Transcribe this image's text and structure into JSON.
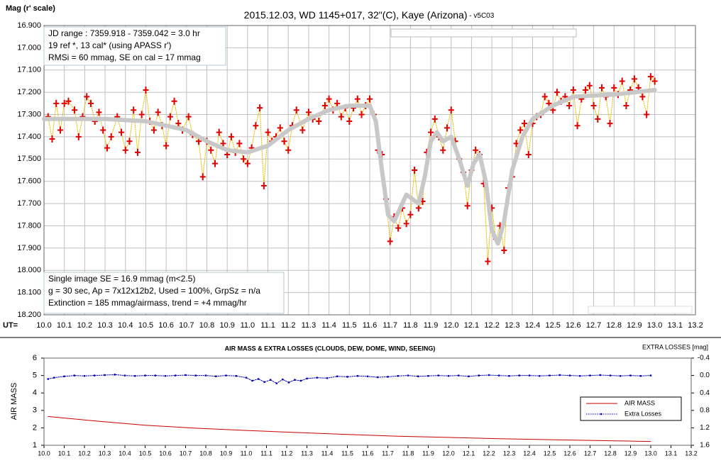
{
  "chart_data": [
    {
      "type": "line",
      "title": "2015.12.03, WD 1145+017, 32\"(C), Kaye (Arizona)",
      "subtitle": " - v5C03",
      "ylabel": "Mag (r' scale)",
      "xlabel": "UT=",
      "annotations": [
        "JD range : 7359.918 - 7359.042 = 3.0 hr",
        "19 ref *, 13 cal* (using APASS r')",
        "RMSi = 60 mmag, SE on cal = 17 mmag",
        "Single image SE = 16.9 mmag (m<2.5)",
        "g = 30 sec, Ap = 7x12x12b2, Used = 100%, GrpSz = n/a",
        "Extinction = 185 mmag/airmass, trend = +4 mmag/hr"
      ],
      "xlim": [
        10,
        13.2
      ],
      "ylim": [
        18.2,
        16.9
      ],
      "grid": true,
      "xticks": [
        {
          "value": 10,
          "label": "10.0"
        },
        10.1,
        10.2,
        10.3,
        10.4,
        10.5,
        10.6,
        10.7,
        10.8,
        10.9,
        {
          "value": 11,
          "label": "11.0"
        },
        11.1,
        11.2,
        11.3,
        11.4,
        11.5,
        11.6,
        11.7,
        11.8,
        11.9,
        {
          "value": 12,
          "label": "12.0"
        },
        12.1,
        12.2,
        12.3,
        12.4,
        12.5,
        12.6,
        12.7,
        12.8,
        12.9,
        {
          "value": 13,
          "label": "13.0"
        },
        13.1,
        13.2
      ],
      "yticks": [
        {
          "value": 16.9,
          "label": "16.900"
        },
        {
          "value": 17.0,
          "label": "17.000"
        },
        {
          "value": 17.1,
          "label": "17.100"
        },
        {
          "value": 17.2,
          "label": "17.200"
        },
        {
          "value": 17.3,
          "label": "17.300"
        },
        {
          "value": 17.4,
          "label": "17.400"
        },
        {
          "value": 17.5,
          "label": "17.500"
        },
        {
          "value": 17.6,
          "label": "17.600"
        },
        {
          "value": 17.7,
          "label": "17.700"
        },
        {
          "value": 17.8,
          "label": "17.800"
        },
        {
          "value": 17.9,
          "label": "17.900"
        },
        {
          "value": 18.0,
          "label": "18.000"
        },
        {
          "value": 18.1,
          "label": "18.100"
        },
        {
          "value": 18.2,
          "label": "18.200"
        }
      ],
      "series": [
        {
          "color": "#e00000",
          "marker": "+",
          "line_color": "#e8c000",
          "line_style": "dotted",
          "x": [
            10.02,
            10.04,
            10.06,
            10.08,
            10.1,
            10.12,
            10.15,
            10.17,
            10.19,
            10.21,
            10.23,
            10.25,
            10.27,
            10.29,
            10.31,
            10.33,
            10.36,
            10.38,
            10.4,
            10.42,
            10.44,
            10.46,
            10.48,
            10.5,
            10.52,
            10.54,
            10.56,
            10.58,
            10.6,
            10.62,
            10.64,
            10.66,
            10.68,
            10.71,
            10.73,
            10.76,
            10.78,
            10.8,
            10.82,
            10.84,
            10.86,
            10.88,
            10.9,
            10.92,
            10.94,
            10.96,
            10.98,
            11.0,
            11.02,
            11.04,
            11.06,
            11.08,
            11.1,
            11.12,
            11.14,
            11.16,
            11.18,
            11.2,
            11.22,
            11.24,
            11.27,
            11.3,
            11.32,
            11.35,
            11.38,
            11.4,
            11.42,
            11.44,
            11.46,
            11.48,
            11.5,
            11.52,
            11.54,
            11.56,
            11.58,
            11.6,
            11.62,
            11.64,
            11.66,
            11.68,
            11.7,
            11.72,
            11.74,
            11.76,
            11.78,
            11.8,
            11.82,
            11.84,
            11.86,
            11.88,
            11.9,
            11.92,
            11.94,
            11.96,
            11.98,
            12.0,
            12.02,
            12.04,
            12.06,
            12.08,
            12.1,
            12.12,
            12.14,
            12.16,
            12.18,
            12.2,
            12.22,
            12.24,
            12.26,
            12.28,
            12.3,
            12.32,
            12.34,
            12.36,
            12.38,
            12.4,
            12.42,
            12.44,
            12.46,
            12.48,
            12.5,
            12.52,
            12.54,
            12.56,
            12.58,
            12.6,
            12.62,
            12.64,
            12.66,
            12.68,
            12.7,
            12.72,
            12.74,
            12.76,
            12.78,
            12.8,
            12.82,
            12.84,
            12.86,
            12.88,
            12.9,
            12.92,
            12.94,
            12.96,
            12.98,
            13.0
          ],
          "values": [
            17.31,
            17.41,
            17.25,
            17.37,
            17.25,
            17.24,
            17.28,
            17.4,
            17.31,
            17.22,
            17.25,
            17.33,
            17.29,
            17.37,
            17.45,
            17.4,
            17.31,
            17.38,
            17.46,
            17.42,
            17.28,
            17.47,
            17.3,
            17.19,
            17.33,
            17.37,
            17.29,
            17.35,
            17.44,
            17.31,
            17.24,
            17.34,
            17.37,
            17.31,
            17.39,
            17.42,
            17.58,
            17.42,
            17.46,
            17.52,
            17.38,
            17.43,
            17.48,
            17.4,
            17.47,
            17.43,
            17.5,
            17.52,
            17.45,
            17.35,
            17.27,
            17.62,
            17.38,
            17.42,
            17.4,
            17.36,
            17.42,
            17.46,
            17.35,
            17.28,
            17.37,
            17.29,
            17.32,
            17.33,
            17.26,
            17.23,
            17.28,
            17.25,
            17.31,
            17.27,
            17.33,
            17.27,
            17.23,
            17.3,
            17.26,
            17.23,
            17.3,
            17.46,
            17.48,
            17.68,
            17.87,
            17.76,
            17.81,
            17.72,
            17.79,
            17.75,
            17.55,
            17.72,
            17.69,
            17.47,
            17.38,
            17.32,
            17.4,
            17.46,
            17.36,
            17.28,
            17.42,
            17.5,
            17.56,
            17.71,
            17.55,
            17.46,
            17.48,
            17.61,
            17.96,
            17.72,
            17.86,
            17.8,
            17.91,
            17.63,
            17.58,
            17.43,
            17.37,
            17.34,
            17.48,
            17.34,
            17.31,
            17.3,
            17.22,
            17.25,
            17.28,
            17.2,
            17.24,
            17.22,
            17.26,
            17.19,
            17.35,
            17.23,
            17.19,
            17.17,
            17.26,
            17.32,
            17.18,
            17.22,
            17.34,
            17.18,
            17.21,
            17.15,
            17.26,
            17.19,
            17.14,
            17.18,
            17.22,
            17.3,
            17.13,
            17.15
          ]
        },
        {
          "color": "#c8c8c8",
          "x": [
            10.0,
            10.3,
            10.5,
            10.7,
            10.8,
            10.9,
            11.0,
            11.1,
            11.2,
            11.3,
            11.4,
            11.5,
            11.6,
            11.63,
            11.66,
            11.69,
            11.72,
            11.75,
            11.78,
            11.81,
            11.84,
            11.87,
            11.9,
            11.93,
            11.96,
            12.0,
            12.04,
            12.08,
            12.11,
            12.14,
            12.17,
            12.2,
            12.23,
            12.26,
            12.3,
            12.35,
            12.4,
            12.5,
            12.6,
            12.8,
            13.0
          ],
          "values": [
            17.32,
            17.32,
            17.33,
            17.37,
            17.42,
            17.46,
            17.47,
            17.44,
            17.37,
            17.32,
            17.28,
            17.26,
            17.26,
            17.33,
            17.55,
            17.75,
            17.78,
            17.72,
            17.66,
            17.68,
            17.7,
            17.58,
            17.42,
            17.38,
            17.42,
            17.4,
            17.5,
            17.62,
            17.52,
            17.48,
            17.6,
            17.82,
            17.88,
            17.78,
            17.55,
            17.4,
            17.32,
            17.26,
            17.22,
            17.21,
            17.19
          ]
        }
      ]
    },
    {
      "type": "line",
      "title": "AIR MASS & EXTRA LOSSES (CLOUDS, DEW, DOME, WIND, SEEING)",
      "ylabel": "AIR MASS",
      "y2label": "EXTRA LOSSES [mag]",
      "xlim": [
        10,
        13.2
      ],
      "ylim": [
        1,
        6
      ],
      "y2lim": [
        1.6,
        -0.4
      ],
      "xticks": [
        {
          "value": 10,
          "label": "10.0"
        },
        10.1,
        10.2,
        10.3,
        10.4,
        10.5,
        10.6,
        10.7,
        10.8,
        10.9,
        {
          "value": 11,
          "label": "11.0"
        },
        11.1,
        11.2,
        11.3,
        11.4,
        11.5,
        11.6,
        11.7,
        11.8,
        11.9,
        {
          "value": 12,
          "label": "12.0"
        },
        12.1,
        12.2,
        12.3,
        12.4,
        12.5,
        12.6,
        12.7,
        12.8,
        12.9,
        {
          "value": 13,
          "label": "13.0"
        },
        13.1,
        13.2
      ],
      "yticks": [
        1,
        2,
        3,
        4,
        5,
        6
      ],
      "y2ticks": [
        -0.4,
        {
          "value": 0,
          "label": "0.0"
        },
        0.4,
        0.8,
        1.2,
        1.6
      ],
      "series": [
        {
          "name": "AIR MASS",
          "color": "#cc0000",
          "x": [
            10.02,
            10.25,
            10.5,
            10.75,
            11.0,
            11.25,
            11.5,
            11.75,
            12.0,
            12.25,
            12.5,
            12.75,
            13.0
          ],
          "values": [
            2.65,
            2.4,
            2.15,
            1.98,
            1.85,
            1.73,
            1.62,
            1.52,
            1.45,
            1.38,
            1.32,
            1.27,
            1.22
          ]
        },
        {
          "name": "Extra Losses",
          "color": "#0000b0",
          "axis": "y2",
          "marker": "square",
          "line_style": "dotted",
          "x": [
            10.02,
            10.05,
            10.1,
            10.15,
            10.2,
            10.25,
            10.3,
            10.35,
            10.4,
            10.45,
            10.5,
            10.55,
            10.6,
            10.65,
            10.7,
            10.75,
            10.8,
            10.85,
            10.9,
            10.95,
            11.0,
            11.03,
            11.06,
            11.09,
            11.12,
            11.15,
            11.18,
            11.21,
            11.24,
            11.27,
            11.3,
            11.35,
            11.4,
            11.45,
            11.5,
            11.55,
            11.6,
            11.65,
            11.7,
            11.75,
            11.8,
            11.85,
            11.9,
            11.95,
            12.0,
            12.05,
            12.1,
            12.15,
            12.2,
            12.25,
            12.3,
            12.35,
            12.4,
            12.45,
            12.5,
            12.55,
            12.6,
            12.65,
            12.7,
            12.75,
            12.8,
            12.85,
            12.9,
            12.95,
            13.0
          ],
          "values": [
            0.08,
            0.05,
            0.02,
            0.0,
            0.01,
            0.0,
            -0.01,
            -0.02,
            0.0,
            0.01,
            0.0,
            0.0,
            0.01,
            0.0,
            -0.01,
            0.0,
            0.0,
            0.02,
            0.0,
            0.01,
            0.05,
            0.12,
            0.08,
            0.15,
            0.1,
            0.18,
            0.09,
            0.16,
            0.1,
            0.12,
            0.07,
            0.05,
            0.06,
            0.02,
            0.03,
            0.01,
            0.02,
            0.04,
            0.03,
            0.01,
            0.0,
            0.02,
            0.01,
            0.0,
            0.01,
            0.0,
            0.02,
            0.0,
            -0.01,
            0.0,
            0.01,
            0.0,
            0.0,
            0.01,
            0.0,
            -0.01,
            0.0,
            0.01,
            0.0,
            -0.01,
            0.0,
            0.01,
            0.0,
            0.01,
            0.0
          ]
        }
      ]
    }
  ]
}
